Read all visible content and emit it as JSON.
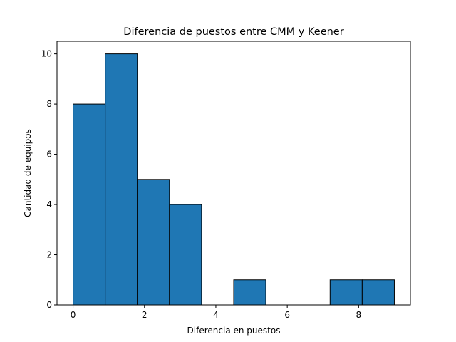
{
  "chart_data": {
    "type": "bar",
    "title": "Diferencia de puestos entre CMM y Keener",
    "xlabel": "Diferencia en puestos",
    "ylabel": "Cantidad de equipos",
    "bin_edges": [
      0,
      0.9,
      1.8,
      2.7,
      3.6,
      4.5,
      5.4,
      6.3,
      7.2,
      8.1,
      9.0
    ],
    "values": [
      8,
      10,
      5,
      4,
      0,
      1,
      0,
      0,
      1,
      1
    ],
    "xlim": [
      -0.45,
      9.45
    ],
    "ylim": [
      0,
      10.5
    ],
    "xticks": [
      0,
      2,
      4,
      6,
      8
    ],
    "yticks": [
      0,
      2,
      4,
      6,
      8,
      10
    ],
    "bar_color": "#1f77b4",
    "edge_color": "#000000",
    "grid": false,
    "legend": "none"
  }
}
